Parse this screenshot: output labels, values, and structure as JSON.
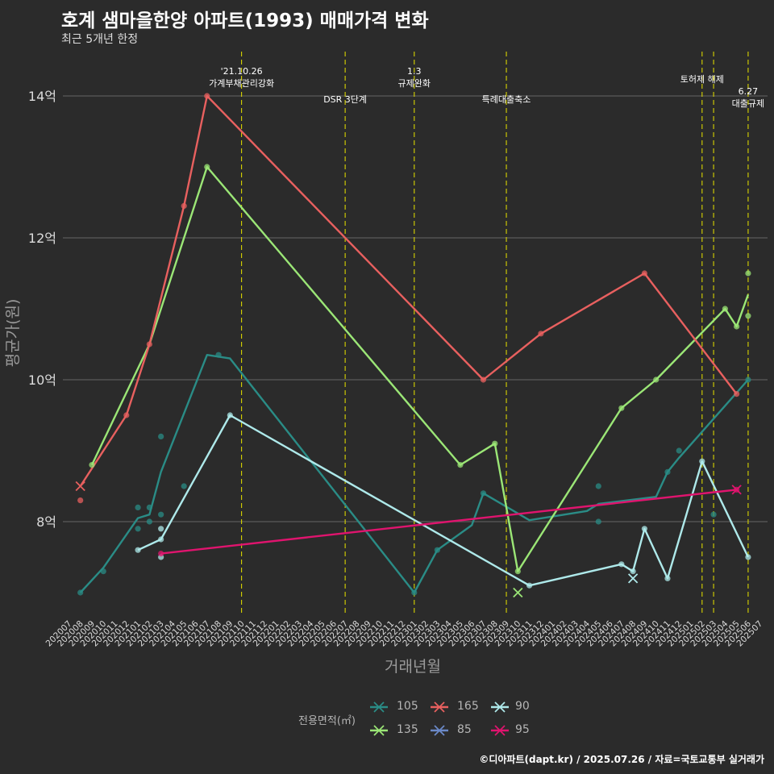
{
  "chart_data": {
    "type": "line",
    "title": "호계 샘마을한양 아파트(1993) 매매가격 변화",
    "subtitle": "최근 5개년 한정",
    "xlabel": "거래년월",
    "ylabel": "평균가(원)",
    "caption": "©디아파트(dapt.kr) / 2025.07.26 / 자료=국토교통부 실거래가",
    "legend_title": "전용면적(㎡)",
    "legend_position": "bottom",
    "grid": true,
    "ylim": [
      6.7,
      14.65
    ],
    "y_ticks": [
      8,
      10,
      12,
      14
    ],
    "y_tick_labels": [
      "8억",
      "10억",
      "12억",
      "14억"
    ],
    "x_categories": [
      "202007",
      "202008",
      "202009",
      "202010",
      "202011",
      "202012",
      "202101",
      "202102",
      "202103",
      "202104",
      "202105",
      "202106",
      "202107",
      "202108",
      "202109",
      "202110",
      "202111",
      "202112",
      "202201",
      "202202",
      "202203",
      "202204",
      "202205",
      "202206",
      "202207",
      "202208",
      "202209",
      "202210",
      "202211",
      "202212",
      "202301",
      "202302",
      "202303",
      "202304",
      "202305",
      "202306",
      "202307",
      "202308",
      "202309",
      "202310",
      "202311",
      "202312",
      "202401",
      "202402",
      "202403",
      "202404",
      "202405",
      "202406",
      "202407",
      "202408",
      "202409",
      "202410",
      "202411",
      "202412",
      "202501",
      "202502",
      "202503",
      "202504",
      "202505",
      "202506",
      "202507"
    ],
    "events": [
      {
        "x": "202110",
        "label_lines": [
          "'21.10.26",
          "가계부채관리강화"
        ]
      },
      {
        "x": "202207",
        "label_lines": [
          "DSR 3단계"
        ]
      },
      {
        "x": "202301",
        "label_lines": [
          "1.3",
          "규제완화"
        ]
      },
      {
        "x": "202309",
        "label_lines": [
          "특례대출축소"
        ]
      },
      {
        "x": "202502",
        "label_lines": [
          "토허제 해제"
        ]
      },
      {
        "x": "202503",
        "label_lines": []
      },
      {
        "x": "202506",
        "label_lines": [
          "6.27",
          "대출규제"
        ]
      }
    ],
    "series": [
      {
        "name": "105",
        "color": "#2a8c86",
        "line": [
          [
            "202008",
            7.0
          ],
          [
            "202010",
            7.35
          ],
          [
            "202101",
            8.05
          ],
          [
            "202102",
            8.1
          ],
          [
            "202103",
            8.7
          ],
          [
            "202107",
            10.35
          ],
          [
            "202109",
            10.3
          ],
          [
            "202301",
            7.0
          ],
          [
            "202303",
            7.6
          ],
          [
            "202306",
            7.95
          ],
          [
            "202307",
            8.4
          ],
          [
            "202311",
            8.02
          ],
          [
            "202404",
            8.15
          ],
          [
            "202405",
            8.25
          ],
          [
            "202410",
            8.35
          ],
          [
            "202411",
            8.7
          ],
          [
            "202412",
            8.9
          ],
          [
            "202506",
            10.0
          ]
        ],
        "points": [
          [
            "202008",
            7.0
          ],
          [
            "202010",
            7.3
          ],
          [
            "202101",
            8.2
          ],
          [
            "202102",
            8.2
          ],
          [
            "202102",
            8.0
          ],
          [
            "202103",
            8.1
          ],
          [
            "202103",
            9.2
          ],
          [
            "202101",
            7.9
          ],
          [
            "202105",
            8.5
          ],
          [
            "202108",
            10.35
          ],
          [
            "202301",
            7.0
          ],
          [
            "202303",
            7.6
          ],
          [
            "202307",
            8.4
          ],
          [
            "202405",
            8.5
          ],
          [
            "202405",
            8.0
          ],
          [
            "202411",
            8.7
          ],
          [
            "202412",
            9.0
          ],
          [
            "202503",
            8.1
          ],
          [
            "202506",
            10.0
          ]
        ],
        "x_marks": []
      },
      {
        "name": "135",
        "color": "#9be676",
        "line": [
          [
            "202009",
            8.8
          ],
          [
            "202102",
            10.5
          ],
          [
            "202107",
            13.0
          ],
          [
            "202305",
            8.8
          ],
          [
            "202308",
            9.1
          ],
          [
            "202310",
            7.3
          ],
          [
            "202407",
            9.6
          ],
          [
            "202410",
            10.0
          ],
          [
            "202504",
            11.0
          ],
          [
            "202505",
            10.75
          ],
          [
            "202506",
            11.2
          ]
        ],
        "points": [
          [
            "202009",
            8.8
          ],
          [
            "202107",
            13.0
          ],
          [
            "202305",
            8.8
          ],
          [
            "202308",
            9.1
          ],
          [
            "202310",
            7.3
          ],
          [
            "202407",
            9.6
          ],
          [
            "202410",
            10.0
          ],
          [
            "202504",
            11.0
          ],
          [
            "202505",
            10.75
          ],
          [
            "202506",
            11.5
          ],
          [
            "202506",
            10.9
          ]
        ],
        "x_marks": [
          [
            "202310",
            7.0
          ]
        ]
      },
      {
        "name": "165",
        "color": "#e8605f",
        "line": [
          [
            "202008",
            8.5
          ],
          [
            "202012",
            9.5
          ],
          [
            "202102",
            10.5
          ],
          [
            "202105",
            12.45
          ],
          [
            "202107",
            14.0
          ],
          [
            "202307",
            10.0
          ],
          [
            "202312",
            10.65
          ],
          [
            "202409",
            11.5
          ],
          [
            "202505",
            9.8
          ]
        ],
        "points": [
          [
            "202008",
            8.3
          ],
          [
            "202012",
            9.5
          ],
          [
            "202102",
            10.5
          ],
          [
            "202105",
            12.45
          ],
          [
            "202107",
            14.0
          ],
          [
            "202307",
            10.0
          ],
          [
            "202312",
            10.65
          ],
          [
            "202409",
            11.5
          ],
          [
            "202505",
            9.8
          ]
        ],
        "x_marks": [
          [
            "202008",
            8.5
          ]
        ]
      },
      {
        "name": "85",
        "color": "#6b89c8",
        "line": [],
        "points": [],
        "x_marks": []
      },
      {
        "name": "90",
        "color": "#aee9ea",
        "line": [
          [
            "202101",
            7.6
          ],
          [
            "202103",
            7.75
          ],
          [
            "202109",
            9.5
          ],
          [
            "202311",
            7.1
          ],
          [
            "202407",
            7.4
          ],
          [
            "202408",
            7.3
          ],
          [
            "202409",
            7.9
          ],
          [
            "202411",
            7.2
          ],
          [
            "202502",
            8.85
          ],
          [
            "202506",
            7.5
          ]
        ],
        "points": [
          [
            "202101",
            7.6
          ],
          [
            "202103",
            7.75
          ],
          [
            "202103",
            7.9
          ],
          [
            "202103",
            7.5
          ],
          [
            "202109",
            9.5
          ],
          [
            "202311",
            7.1
          ],
          [
            "202407",
            7.4
          ],
          [
            "202408",
            7.3
          ],
          [
            "202409",
            7.9
          ],
          [
            "202411",
            7.2
          ],
          [
            "202502",
            8.85
          ],
          [
            "202506",
            7.5
          ]
        ],
        "x_marks": [
          [
            "202408",
            7.2
          ]
        ]
      },
      {
        "name": "95",
        "color": "#e0146e",
        "line": [
          [
            "202103",
            7.55
          ],
          [
            "202505",
            8.45
          ]
        ],
        "points": [
          [
            "202103",
            7.55
          ],
          [
            "202505",
            8.45
          ]
        ],
        "x_marks": [
          [
            "202505",
            8.45
          ]
        ]
      }
    ],
    "legend_order": [
      "105",
      "165",
      "90",
      "135",
      "85",
      "95"
    ]
  }
}
